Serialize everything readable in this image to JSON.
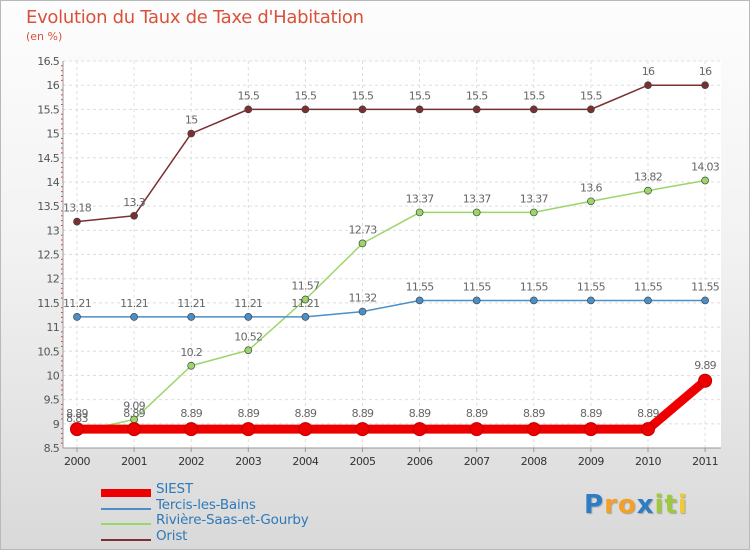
{
  "title": "Evolution du Taux de Taxe d'Habitation",
  "subtitle": "(en %)",
  "brand": {
    "letters": [
      "P",
      "r",
      "o",
      "x",
      "i",
      "t",
      "i"
    ],
    "colors": [
      "#2e7cc4",
      "#f4a028",
      "#f4a028",
      "#2e7cc4",
      "#9ec93c",
      "#9ec93c",
      "#f0cb2f"
    ]
  },
  "chart_data": {
    "type": "line",
    "x": [
      "2000",
      "2001",
      "2002",
      "2003",
      "2004",
      "2005",
      "2006",
      "2007",
      "2008",
      "2009",
      "2010",
      "2011"
    ],
    "ylim": [
      8.5,
      16.5
    ],
    "yticks": [
      "8.5",
      "9",
      "9.5",
      "10",
      "10.5",
      "11",
      "11.5",
      "12",
      "12.5",
      "13",
      "13.5",
      "14",
      "14.5",
      "15",
      "15.5",
      "16",
      "16.5"
    ],
    "grid": true,
    "legend": "bottom-left",
    "series": [
      {
        "name": "SIEST",
        "color": "#ee0000",
        "values": [
          8.89,
          8.89,
          8.89,
          8.89,
          8.89,
          8.89,
          8.89,
          8.89,
          8.89,
          8.89,
          8.89,
          9.89
        ],
        "labels": [
          "8.89",
          "8.89",
          "8.89",
          "8.89",
          "8.89",
          "8.89",
          "8.89",
          "8.89",
          "8.89",
          "8.89",
          "8.89",
          "9.89"
        ]
      },
      {
        "name": "Tercis-les-Bains",
        "color": "#4b8fc8",
        "values": [
          11.21,
          11.21,
          11.21,
          11.21,
          11.21,
          11.32,
          11.55,
          11.55,
          11.55,
          11.55,
          11.55,
          11.55
        ],
        "labels": [
          "11.21",
          "11.21",
          "11.21",
          "11.21",
          "11.21",
          "11.32",
          "11.55",
          "11.55",
          "11.55",
          "11.55",
          "11.55",
          "11.55"
        ]
      },
      {
        "name": "Rivière-Saas-et-Gourby",
        "color": "#9bd66a",
        "values": [
          8.83,
          9.09,
          10.2,
          10.52,
          11.57,
          12.73,
          13.37,
          13.37,
          13.37,
          13.6,
          13.82,
          14.03
        ],
        "labels": [
          "8.83",
          "9.09",
          "10.2",
          "10.52",
          "11.57",
          "12.73",
          "13.37",
          "13.37",
          "13.37",
          "13.6",
          "13.82",
          "14.03"
        ]
      },
      {
        "name": "Orist",
        "color": "#7a3030",
        "values": [
          13.18,
          13.3,
          15,
          15.5,
          15.5,
          15.5,
          15.5,
          15.5,
          15.5,
          15.5,
          16,
          16
        ],
        "labels": [
          "13.18",
          "13.3",
          "15",
          "15.5",
          "15.5",
          "15.5",
          "15.5",
          "15.5",
          "15.5",
          "15.5",
          "16",
          "16"
        ]
      }
    ]
  }
}
